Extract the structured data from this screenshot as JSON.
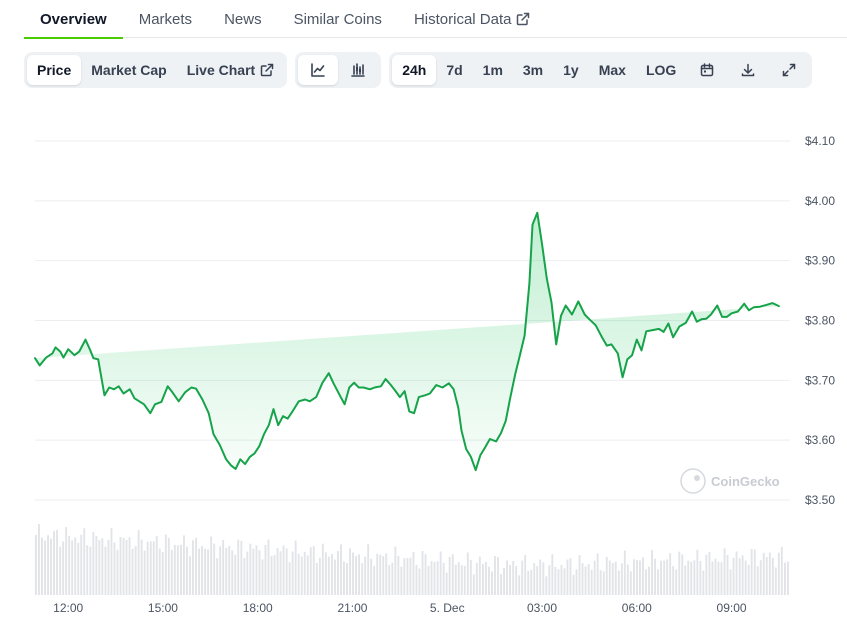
{
  "nav": {
    "tabs": [
      {
        "label": "Overview",
        "active": true
      },
      {
        "label": "Markets"
      },
      {
        "label": "News"
      },
      {
        "label": "Similar Coins"
      },
      {
        "label": "Historical Data",
        "external": true
      }
    ]
  },
  "toolbar": {
    "metric_tabs": [
      "Price",
      "Market Cap",
      "Live Chart"
    ],
    "active_metric": "Price",
    "chart_style_icons": [
      "line-chart-icon",
      "candlestick-chart-icon"
    ],
    "active_style": "line-chart-icon",
    "ranges": [
      "24h",
      "7d",
      "1m",
      "3m",
      "1y",
      "Max",
      "LOG"
    ],
    "active_range": "24h",
    "action_icons": [
      "calendar-icon",
      "download-icon",
      "fullscreen-icon"
    ]
  },
  "colors": {
    "accent": "#4bcc00",
    "line": "#16a34a",
    "area": "#22c55e"
  },
  "chart_data": {
    "type": "area",
    "watermark": "CoinGecko",
    "yticks": [
      "$3.50",
      "$3.60",
      "$3.70",
      "$3.80",
      "$3.90",
      "$4.00",
      "$4.10"
    ],
    "ytick_values": [
      3.5,
      3.6,
      3.7,
      3.8,
      3.9,
      4.0,
      4.1
    ],
    "ylim": [
      3.5,
      4.1
    ],
    "xticks": [
      "12:00",
      "15:00",
      "18:00",
      "21:00",
      "5. Dec",
      "03:00",
      "06:00",
      "09:00"
    ],
    "xtick_hours": [
      12,
      15,
      18,
      21,
      24,
      27,
      30,
      33
    ],
    "xlim_hours": [
      10.95,
      34.85
    ],
    "grid": true,
    "y_axis_position": "right",
    "x_hours": [
      10.95,
      11.1,
      11.3,
      11.5,
      11.6,
      11.75,
      11.85,
      12.0,
      12.2,
      12.35,
      12.55,
      12.7,
      12.8,
      12.95,
      13.15,
      13.3,
      13.45,
      13.6,
      13.75,
      13.95,
      14.1,
      14.25,
      14.4,
      14.6,
      14.75,
      14.95,
      15.15,
      15.3,
      15.5,
      15.7,
      15.9,
      16.05,
      16.25,
      16.45,
      16.6,
      16.8,
      17.0,
      17.15,
      17.3,
      17.45,
      17.6,
      17.75,
      17.9,
      18.05,
      18.2,
      18.35,
      18.5,
      18.65,
      18.8,
      18.95,
      19.1,
      19.3,
      19.5,
      19.65,
      19.85,
      20.05,
      20.25,
      20.4,
      20.6,
      20.75,
      20.9,
      21.05,
      21.2,
      21.35,
      21.55,
      21.7,
      21.9,
      22.05,
      22.2,
      22.35,
      22.5,
      22.65,
      22.8,
      22.95,
      23.1,
      23.3,
      23.45,
      23.65,
      23.85,
      24.05,
      24.2,
      24.35,
      24.45,
      24.6,
      24.75,
      24.9,
      25.05,
      25.2,
      25.35,
      25.55,
      25.7,
      25.85,
      26.0,
      26.15,
      26.3,
      26.45,
      26.6,
      26.7,
      26.85,
      27.0,
      27.15,
      27.3,
      27.45,
      27.6,
      27.75,
      27.95,
      28.15,
      28.35,
      28.5,
      28.7,
      28.9,
      29.05,
      29.2,
      29.4,
      29.55,
      29.7,
      29.85,
      30.0,
      30.15,
      30.3,
      30.5,
      30.7,
      30.85,
      31.0,
      31.15,
      31.35,
      31.55,
      31.75,
      31.9,
      32.05,
      32.2,
      32.35,
      32.55,
      32.7,
      32.85,
      33.0,
      33.2,
      33.4,
      33.55,
      33.7,
      33.9,
      34.1,
      34.3,
      34.5,
      34.65,
      34.85
    ],
    "price": [
      3.737,
      3.725,
      3.738,
      3.745,
      3.755,
      3.748,
      3.738,
      3.752,
      3.742,
      3.748,
      3.768,
      3.75,
      3.737,
      3.735,
      3.675,
      3.688,
      3.685,
      3.69,
      3.678,
      3.685,
      3.67,
      3.665,
      3.66,
      3.645,
      3.66,
      3.664,
      3.69,
      3.68,
      3.665,
      3.68,
      3.688,
      3.686,
      3.668,
      3.645,
      3.61,
      3.592,
      3.568,
      3.558,
      3.552,
      3.568,
      3.56,
      3.572,
      3.578,
      3.59,
      3.61,
      3.625,
      3.652,
      3.625,
      3.64,
      3.636,
      3.648,
      3.665,
      3.668,
      3.665,
      3.672,
      3.696,
      3.712,
      3.695,
      3.675,
      3.66,
      3.688,
      3.696,
      3.688,
      3.688,
      3.685,
      3.688,
      3.69,
      3.702,
      3.693,
      3.683,
      3.672,
      3.682,
      3.648,
      3.645,
      3.672,
      3.675,
      3.678,
      3.692,
      3.688,
      3.695,
      3.685,
      3.654,
      3.616,
      3.585,
      3.572,
      3.55,
      3.575,
      3.588,
      3.602,
      3.598,
      3.612,
      3.632,
      3.672,
      3.71,
      3.742,
      3.775,
      3.862,
      3.96,
      3.98,
      3.928,
      3.87,
      3.83,
      3.76,
      3.808,
      3.825,
      3.81,
      3.832,
      3.81,
      3.802,
      3.792,
      3.772,
      3.758,
      3.76,
      3.745,
      3.705,
      3.735,
      3.742,
      3.768,
      3.75,
      3.782,
      3.784,
      3.786,
      3.781,
      3.795,
      3.772,
      3.79,
      3.796,
      3.815,
      3.798,
      3.802,
      3.803,
      3.81,
      3.825,
      3.806,
      3.806,
      3.812,
      3.815,
      3.828,
      3.817,
      3.822,
      3.823,
      3.826,
      3.829,
      3.824
    ]
  }
}
